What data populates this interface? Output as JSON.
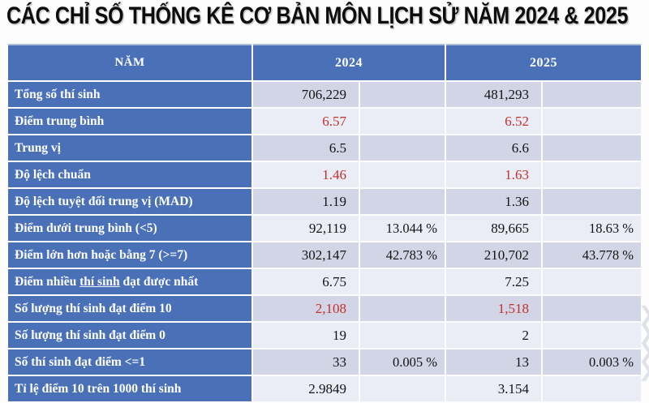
{
  "page": {
    "title": "CÁC CHỈ SỐ THỐNG KÊ CƠ BẢN MÔN LỊCH SỬ NĂM 2024 & 2025"
  },
  "colors": {
    "header_blue": "#4a71b8",
    "band_dark": "#d1d5e6",
    "band_light": "#eaedf6",
    "highlight_red": "#c3312c",
    "header_text": "#ffffff",
    "value_text": "#141414"
  },
  "table": {
    "columns": {
      "label": "NĂM",
      "year_2024": "2024",
      "year_2025": "2025"
    },
    "rows": [
      {
        "label": "Tổng số thí sinh",
        "v2024": "706,229",
        "p2024": "",
        "v2025": "481,293",
        "p2025": "",
        "red": false
      },
      {
        "label": "Điểm trung bình",
        "v2024": "6.57",
        "p2024": "",
        "v2025": "6.52",
        "p2025": "",
        "red": true
      },
      {
        "label": "Trung vị",
        "v2024": "6.5",
        "p2024": "",
        "v2025": "6.6",
        "p2025": "",
        "red": false
      },
      {
        "label": "Độ lệch chuẩn",
        "v2024": "1.46",
        "p2024": "",
        "v2025": "1.63",
        "p2025": "",
        "red": true
      },
      {
        "label": "Độ lệch tuyệt đối trung vị (MAD)",
        "v2024": "1.19",
        "p2024": "",
        "v2025": "1.36",
        "p2025": "",
        "red": false
      },
      {
        "label": "Điểm dưới trung bình (<5)",
        "v2024": "92,119",
        "p2024": "13.044 %",
        "v2025": "89,665",
        "p2025": "18.63 %",
        "red": false
      },
      {
        "label": "Điểm lớn hơn hoặc bằng 7 (>=7)",
        "v2024": "302,147",
        "p2024": "42.783 %",
        "v2025": "210,702",
        "p2025": "43.778 %",
        "red": false
      },
      {
        "label": "Điểm nhiều thí sinh đạt được nhất",
        "underline": "thí sinh",
        "v2024": "6.75",
        "p2024": "",
        "v2025": "7.25",
        "p2025": "",
        "red": false
      },
      {
        "label": "Số lượng thí sinh đạt điểm 10",
        "v2024": "2,108",
        "p2024": "",
        "v2025": "1,518",
        "p2025": "",
        "red": true
      },
      {
        "label": "Số lượng thí sinh đạt điểm 0",
        "v2024": "19",
        "p2024": "",
        "v2025": "2",
        "p2025": "",
        "red": false
      },
      {
        "label": "Số thí sinh đạt điểm <=1",
        "v2024": "33",
        "p2024": "0.005 %",
        "v2025": "13",
        "p2025": "0.003 %",
        "red": false
      },
      {
        "label": "Tỉ lệ điểm 10 trên 1000 thí sinh",
        "v2024": "2.9849",
        "p2024": "",
        "v2025": "3.154",
        "p2025": "",
        "red": false
      }
    ]
  },
  "chart_data": {
    "type": "table",
    "title": "CÁC CHỈ SỐ THỐNG KÊ CƠ BẢN MÔN LỊCH SỬ NĂM 2024 & 2025",
    "columns": [
      "NĂM",
      "2024",
      "2024 %",
      "2025",
      "2025 %"
    ],
    "rows": [
      [
        "Tổng số thí sinh",
        "706,229",
        "",
        "481,293",
        ""
      ],
      [
        "Điểm trung bình",
        "6.57",
        "",
        "6.52",
        ""
      ],
      [
        "Trung vị",
        "6.5",
        "",
        "6.6",
        ""
      ],
      [
        "Độ lệch chuẩn",
        "1.46",
        "",
        "1.63",
        ""
      ],
      [
        "Độ lệch tuyệt đối trung vị (MAD)",
        "1.19",
        "",
        "1.36",
        ""
      ],
      [
        "Điểm dưới trung bình (<5)",
        "92,119",
        "13.044 %",
        "89,665",
        "18.63 %"
      ],
      [
        "Điểm lớn hơn hoặc bằng 7 (>=7)",
        "302,147",
        "42.783 %",
        "210,702",
        "43.778 %"
      ],
      [
        "Điểm nhiều thí sinh đạt được nhất",
        "6.75",
        "",
        "7.25",
        ""
      ],
      [
        "Số lượng thí sinh đạt điểm 10",
        "2,108",
        "",
        "1,518",
        ""
      ],
      [
        "Số lượng thí sinh đạt điểm 0",
        "19",
        "",
        "2",
        ""
      ],
      [
        "Số thí sinh đạt điểm <=1",
        "33",
        "0.005 %",
        "13",
        "0.003 %"
      ],
      [
        "Tỉ lệ điểm 10 trên 1000 thí sinh",
        "2.9849",
        "",
        "3.154",
        ""
      ]
    ],
    "highlighted_red_rows": [
      "Điểm trung bình",
      "Độ lệch chuẩn",
      "Số lượng thí sinh đạt điểm 10"
    ],
    "layout": {
      "banded_rows": true,
      "header_background": "#4a71b8",
      "label_column_background": "#4a71b8"
    }
  },
  "decoration": {
    "watermark": "❯\n❯\n❯\n❯"
  }
}
